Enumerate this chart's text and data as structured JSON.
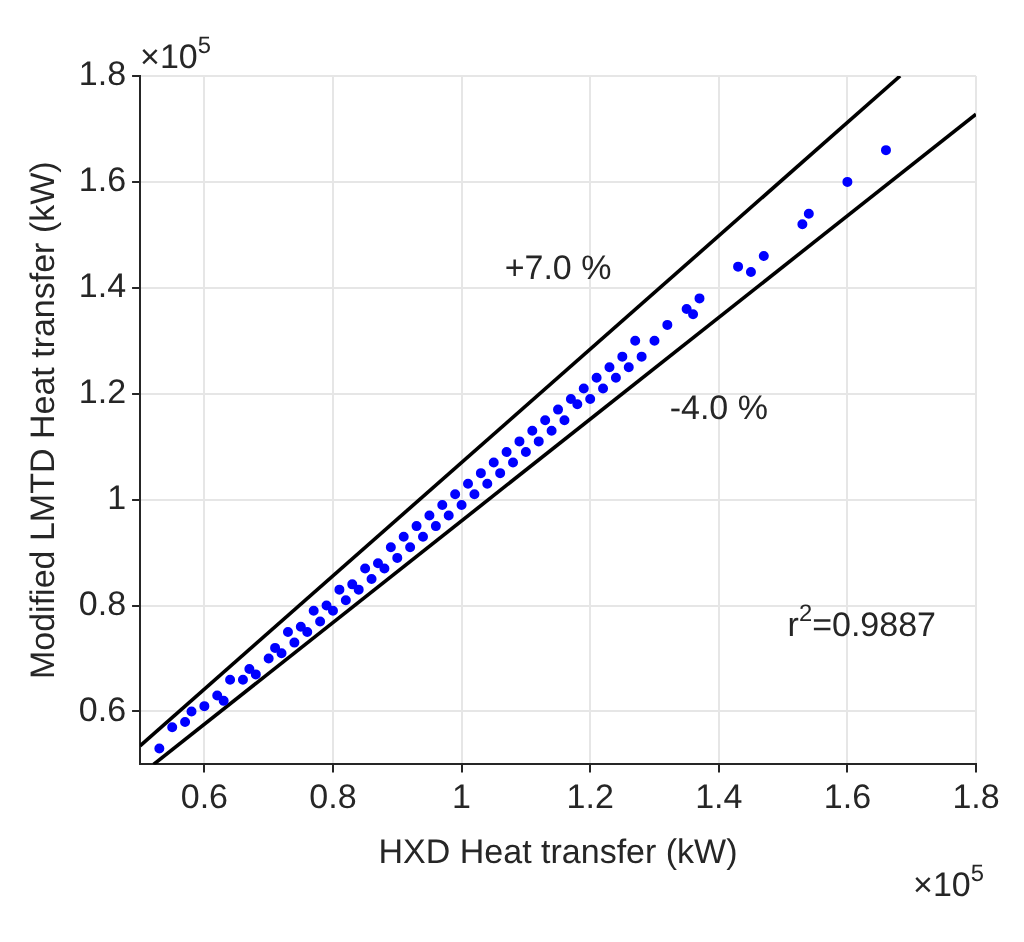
{
  "chart_data": {
    "type": "scatter",
    "xlabel": "HXD Heat transfer (kW)",
    "ylabel": "Modified LMTD Heat transfer (kW)",
    "xlim": [
      0.5,
      1.8
    ],
    "ylim": [
      0.5,
      1.8
    ],
    "xticks": [
      0.6,
      0.8,
      1,
      1.2,
      1.4,
      1.6,
      1.8
    ],
    "yticks": [
      0.6,
      0.8,
      1,
      1.2,
      1.4,
      1.6,
      1.8
    ],
    "grid": true,
    "legend": false,
    "annotations": [
      "×10$^{5}$",
      "×10$^{5}$",
      "+7.0 %",
      "-4.0 %",
      "r$^{2}$=0.9887"
    ],
    "series": [
      {
        "marker": "circle",
        "color": "#0000ff",
        "x": [
          0.53,
          0.55,
          0.57,
          0.58,
          0.6,
          0.62,
          0.63,
          0.64,
          0.66,
          0.67,
          0.68,
          0.7,
          0.71,
          0.72,
          0.73,
          0.74,
          0.75,
          0.76,
          0.77,
          0.78,
          0.79,
          0.8,
          0.81,
          0.82,
          0.83,
          0.84,
          0.85,
          0.86,
          0.87,
          0.88,
          0.89,
          0.9,
          0.91,
          0.92,
          0.93,
          0.94,
          0.95,
          0.96,
          0.97,
          0.98,
          0.99,
          1,
          1.01,
          1.02,
          1.03,
          1.04,
          1.05,
          1.06,
          1.07,
          1.08,
          1.09,
          1.1,
          1.11,
          1.12,
          1.13,
          1.14,
          1.15,
          1.16,
          1.17,
          1.18,
          1.19,
          1.2,
          1.21,
          1.22,
          1.23,
          1.24,
          1.25,
          1.26,
          1.27,
          1.28,
          1.3,
          1.32,
          1.35,
          1.36,
          1.37,
          1.43,
          1.45,
          1.47,
          1.53,
          1.54,
          1.6,
          1.66
        ],
        "values": [
          0.53,
          0.57,
          0.58,
          0.6,
          0.61,
          0.63,
          0.62,
          0.66,
          0.66,
          0.68,
          0.67,
          0.7,
          0.72,
          0.71,
          0.75,
          0.73,
          0.76,
          0.75,
          0.79,
          0.77,
          0.8,
          0.79,
          0.83,
          0.81,
          0.84,
          0.83,
          0.87,
          0.85,
          0.88,
          0.87,
          0.91,
          0.89,
          0.93,
          0.91,
          0.95,
          0.93,
          0.97,
          0.95,
          0.99,
          0.97,
          1.01,
          0.99,
          1.03,
          1.01,
          1.05,
          1.03,
          1.07,
          1.05,
          1.09,
          1.07,
          1.11,
          1.09,
          1.13,
          1.11,
          1.15,
          1.13,
          1.17,
          1.15,
          1.19,
          1.18,
          1.21,
          1.19,
          1.23,
          1.21,
          1.25,
          1.23,
          1.27,
          1.25,
          1.3,
          1.27,
          1.3,
          1.33,
          1.36,
          1.35,
          1.38,
          1.44,
          1.43,
          1.46,
          1.52,
          1.54,
          1.6,
          1.66
        ]
      },
      {
        "type": "line",
        "marker": "none",
        "line_style": "solid",
        "color": "#000000",
        "x": [
          0.5,
          1.682
        ],
        "values": [
          0.535,
          1.8
        ]
      },
      {
        "type": "line",
        "marker": "none",
        "line_style": "solid",
        "color": "#000000",
        "x": [
          0.521,
          1.8
        ],
        "values": [
          0.5,
          1.728
        ]
      }
    ]
  }
}
